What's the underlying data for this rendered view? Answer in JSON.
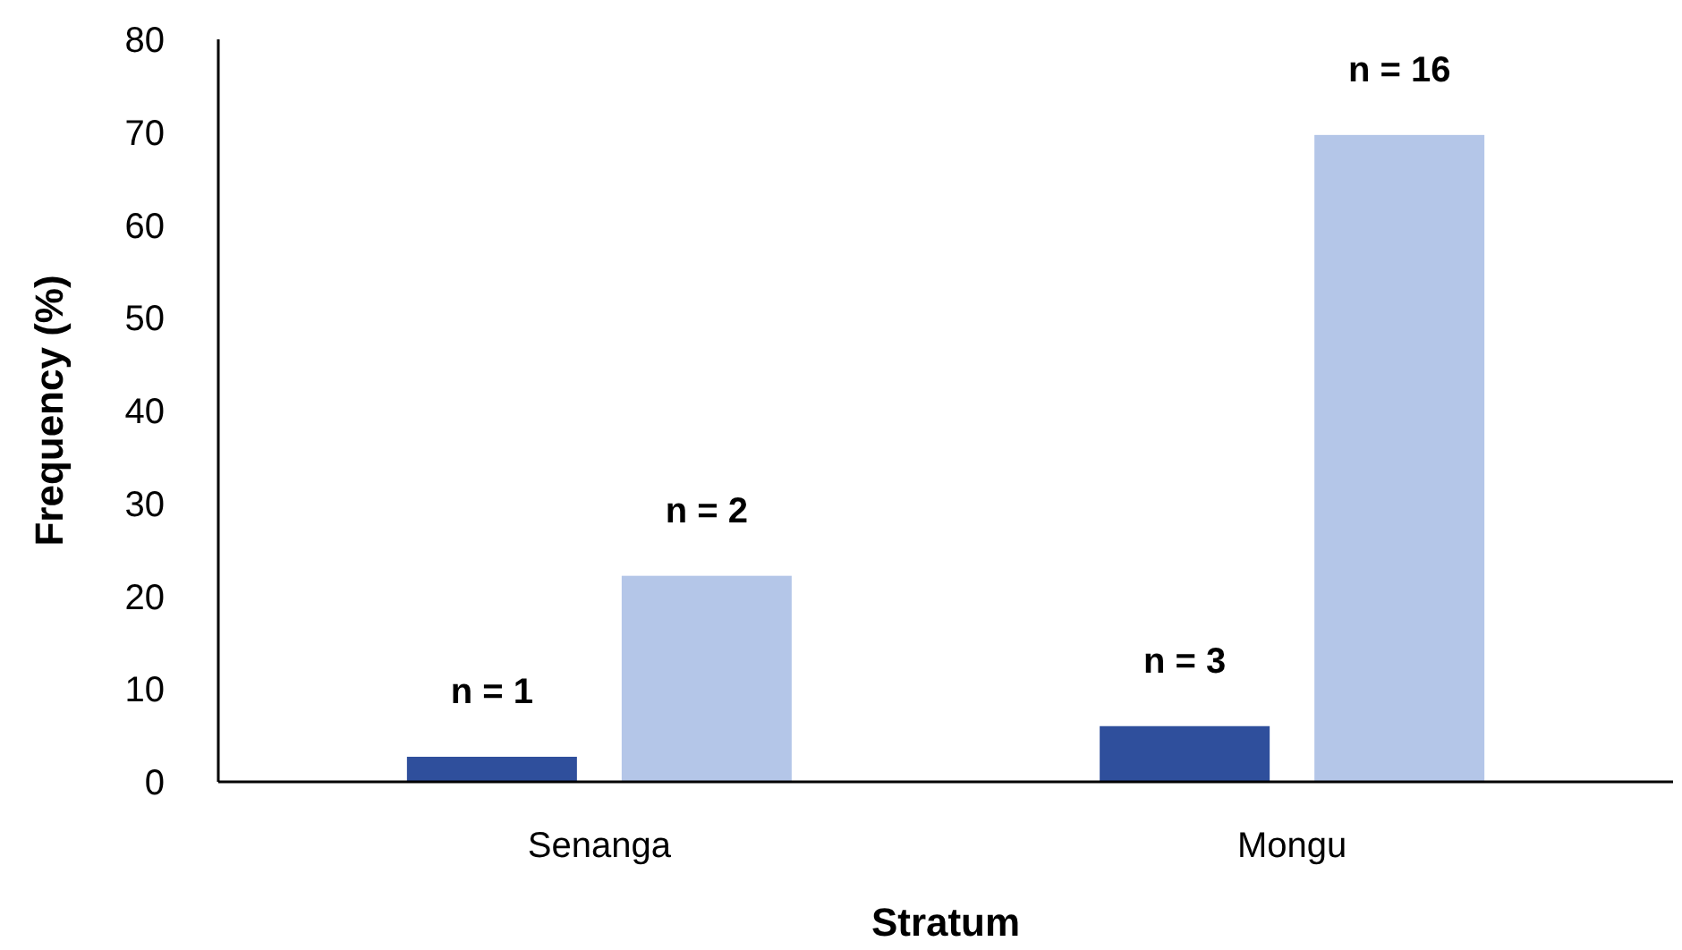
{
  "chart_data": {
    "type": "bar",
    "xlabel": "Stratum",
    "ylabel": "Frequency (%)",
    "categories": [
      "Senanga",
      "Mongu"
    ],
    "series": [
      {
        "color": "#2f4f9c",
        "values": [
          2.7,
          6
        ]
      },
      {
        "color": "#b4c6e8",
        "values": [
          22.2,
          69.7
        ]
      }
    ],
    "annotations": [
      "n = 1",
      "n = 2",
      "n = 3",
      "n = 16"
    ],
    "ylim": [
      0,
      80
    ],
    "yticks": [
      0,
      10,
      20,
      30,
      40,
      50,
      60,
      70,
      80
    ],
    "grid": false
  }
}
